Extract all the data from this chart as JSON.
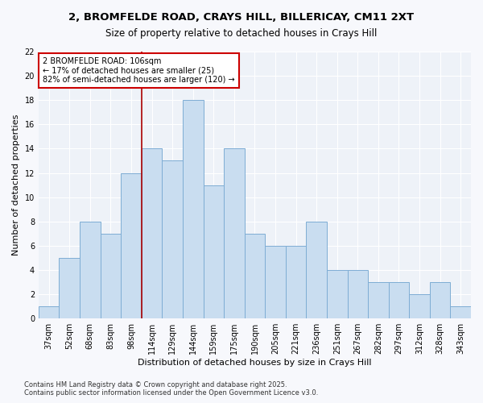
{
  "title": "2, BROMFELDE ROAD, CRAYS HILL, BILLERICAY, CM11 2XT",
  "subtitle": "Size of property relative to detached houses in Crays Hill",
  "xlabel": "Distribution of detached houses by size in Crays Hill",
  "ylabel": "Number of detached properties",
  "categories": [
    "37sqm",
    "52sqm",
    "68sqm",
    "83sqm",
    "98sqm",
    "114sqm",
    "129sqm",
    "144sqm",
    "159sqm",
    "175sqm",
    "190sqm",
    "205sqm",
    "221sqm",
    "236sqm",
    "251sqm",
    "267sqm",
    "282sqm",
    "297sqm",
    "312sqm",
    "328sqm",
    "343sqm"
  ],
  "values": [
    1,
    5,
    8,
    7,
    12,
    14,
    13,
    18,
    11,
    14,
    7,
    6,
    6,
    8,
    4,
    4,
    3,
    3,
    2,
    3,
    1
  ],
  "bar_color": "#c9ddf0",
  "bar_edge_color": "#7eadd4",
  "marker_line_color": "#aa0000",
  "annotation_text": "2 BROMFELDE ROAD: 106sqm\n← 17% of detached houses are smaller (25)\n82% of semi-detached houses are larger (120) →",
  "annotation_box_color": "#ffffff",
  "annotation_box_edge_color": "#cc0000",
  "ylim": [
    0,
    22
  ],
  "yticks": [
    0,
    2,
    4,
    6,
    8,
    10,
    12,
    14,
    16,
    18,
    20,
    22
  ],
  "footer": "Contains HM Land Registry data © Crown copyright and database right 2025.\nContains public sector information licensed under the Open Government Licence v3.0.",
  "bg_color": "#f7f8fc",
  "plot_bg_color": "#eef2f8",
  "grid_color": "#ffffff",
  "title_fontsize": 9.5,
  "subtitle_fontsize": 8.5,
  "axis_label_fontsize": 8,
  "tick_fontsize": 7,
  "annotation_fontsize": 7,
  "footer_fontsize": 6
}
